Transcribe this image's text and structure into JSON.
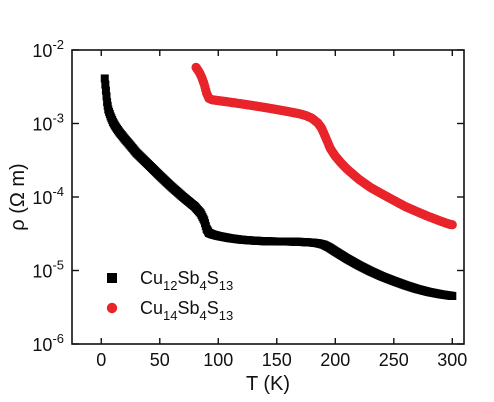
{
  "chart_data": {
    "type": "scatter",
    "title": "",
    "xlabel": "T (K)",
    "ylabel": "ρ (Ω m)",
    "xlim": [
      -25,
      310
    ],
    "ylim": [
      1e-06,
      0.01
    ],
    "yscale": "log",
    "grid": false,
    "legend_position": "bottom-left",
    "x_ticks": [
      0,
      50,
      100,
      150,
      200,
      250,
      300
    ],
    "x_tick_labels": [
      "0",
      "50",
      "100",
      "150",
      "200",
      "250",
      "300"
    ],
    "y_ticks": [
      1e-06,
      1e-05,
      0.0001,
      0.001,
      0.01
    ],
    "y_tick_labels": [
      {
        "base": "10",
        "exp": "-6"
      },
      {
        "base": "10",
        "exp": "-5"
      },
      {
        "base": "10",
        "exp": "-4"
      },
      {
        "base": "10",
        "exp": "-3"
      },
      {
        "base": "10",
        "exp": "-2"
      }
    ],
    "series": [
      {
        "name": "Cu12Sb4S13",
        "legend": {
          "base": "Cu",
          "sub1": "12",
          "mid1": "Sb",
          "sub2": "4",
          "mid2": "S",
          "sub3": "13"
        },
        "color": "#000000",
        "marker": "square",
        "x": [
          3,
          4,
          5,
          6,
          8,
          10,
          12,
          15,
          20,
          25,
          30,
          40,
          50,
          60,
          70,
          80,
          85,
          88,
          90,
          92,
          95,
          100,
          110,
          120,
          130,
          140,
          150,
          160,
          170,
          180,
          185,
          190,
          195,
          200,
          210,
          220,
          230,
          240,
          250,
          260,
          270,
          280,
          290,
          300
        ],
        "y": [
          0.0041,
          0.0028,
          0.00195,
          0.00155,
          0.00125,
          0.00105,
          0.00092,
          0.00078,
          0.00062,
          0.0005,
          0.0004,
          0.00028,
          0.000195,
          0.000138,
          0.0001,
          7.4e-05,
          6e-05,
          4.8e-05,
          3.7e-05,
          3.25e-05,
          3.1e-05,
          2.95e-05,
          2.75e-05,
          2.62e-05,
          2.55e-05,
          2.5e-05,
          2.48e-05,
          2.48e-05,
          2.45e-05,
          2.4e-05,
          2.35e-05,
          2.25e-05,
          2.05e-05,
          1.82e-05,
          1.45e-05,
          1.18e-05,
          9.8e-06,
          8.3e-06,
          7.2e-06,
          6.3e-06,
          5.6e-06,
          5.1e-06,
          4.75e-06,
          4.5e-06
        ]
      },
      {
        "name": "Cu14Sb4S13",
        "legend": {
          "base": "Cu",
          "sub1": "14",
          "mid1": "Sb",
          "sub2": "4",
          "mid2": "S",
          "sub3": "13"
        },
        "color": "#e8252b",
        "marker": "circle",
        "x": [
          81,
          82,
          84,
          86,
          88,
          90,
          92,
          95,
          100,
          110,
          120,
          130,
          140,
          150,
          160,
          170,
          175,
          180,
          185,
          188,
          190,
          193,
          196,
          200,
          205,
          210,
          220,
          230,
          240,
          250,
          260,
          270,
          280,
          290,
          295,
          298,
          300
        ],
        "y": [
          0.0058,
          0.0055,
          0.0049,
          0.0042,
          0.0034,
          0.0026,
          0.0022,
          0.0021,
          0.00205,
          0.00195,
          0.00185,
          0.00175,
          0.00165,
          0.00155,
          0.00145,
          0.00135,
          0.00128,
          0.00118,
          0.00102,
          0.00088,
          0.00075,
          0.00058,
          0.00045,
          0.00036,
          0.00029,
          0.00024,
          0.000175,
          0.000135,
          0.00011,
          9e-05,
          7.4e-05,
          6.3e-05,
          5.4e-05,
          4.7e-05,
          4.4e-05,
          4.25e-05,
          4.2e-05
        ]
      }
    ]
  }
}
